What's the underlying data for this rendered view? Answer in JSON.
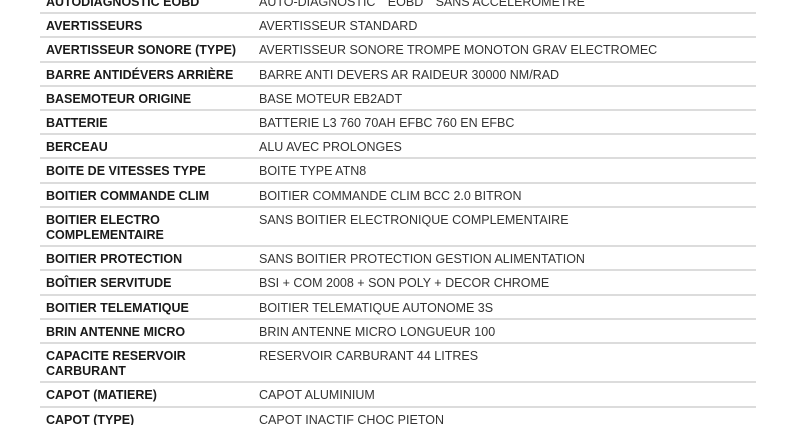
{
  "rows": [
    {
      "label": "AUTODIAGNOSTIC EOBD",
      "value": "AUTO-DIAGNOSTIC \"\"EOBD\"\" SANS ACCELEROMETRE"
    },
    {
      "label": "AVERTISSEURS",
      "value": "AVERTISSEUR STANDARD"
    },
    {
      "label": "AVERTISSEUR SONORE (TYPE)",
      "value": "AVERTISSEUR SONORE TROMPE MONOTON GRAV ELECTROMEC"
    },
    {
      "label": "BARRE ANTIDÉVERS ARRIÈRE",
      "value": "BARRE ANTI DEVERS AR RAIDEUR 30000 NM/RAD"
    },
    {
      "label": "BASEMOTEUR ORIGINE",
      "value": "BASE MOTEUR EB2ADT"
    },
    {
      "label": "BATTERIE",
      "value": "BATTERIE L3 760 70AH EFBC 760 EN EFBC"
    },
    {
      "label": "BERCEAU",
      "value": "ALU AVEC PROLONGES"
    },
    {
      "label": "BOITE DE VITESSES TYPE",
      "value": "BOITE TYPE ATN8"
    },
    {
      "label": "BOITIER COMMANDE CLIM",
      "value": "BOITIER COMMANDE CLIM BCC 2.0 BITRON"
    },
    {
      "label": "BOITIER ELECTRO COMPLEMENTAIRE",
      "value": "SANS BOITIER ELECTRONIQUE COMPLEMENTAIRE",
      "tall": true
    },
    {
      "label": "BOITIER PROTECTION",
      "value": "SANS BOITIER PROTECTION GESTION ALIMENTATION"
    },
    {
      "label": "BOÎTIER SERVITUDE",
      "value": "BSI + COM 2008 + SON POLY + DECOR CHROME"
    },
    {
      "label": "BOITIER TELEMATIQUE",
      "value": "BOITIER TELEMATIQUE AUTONOME 3S"
    },
    {
      "label": "BRIN ANTENNE MICRO",
      "value": "BRIN ANTENNE MICRO LONGUEUR 100"
    },
    {
      "label": "CAPACITE RESERVOIR CARBURANT",
      "value": "RESERVOIR CARBURANT 44 LITRES",
      "tall": true
    },
    {
      "label": "CAPOT (MATIERE)",
      "value": "CAPOT ALUMINIUM"
    },
    {
      "label": "CAPOT (TYPE)",
      "value": "CAPOT INACTIF CHOC PIETON"
    }
  ]
}
